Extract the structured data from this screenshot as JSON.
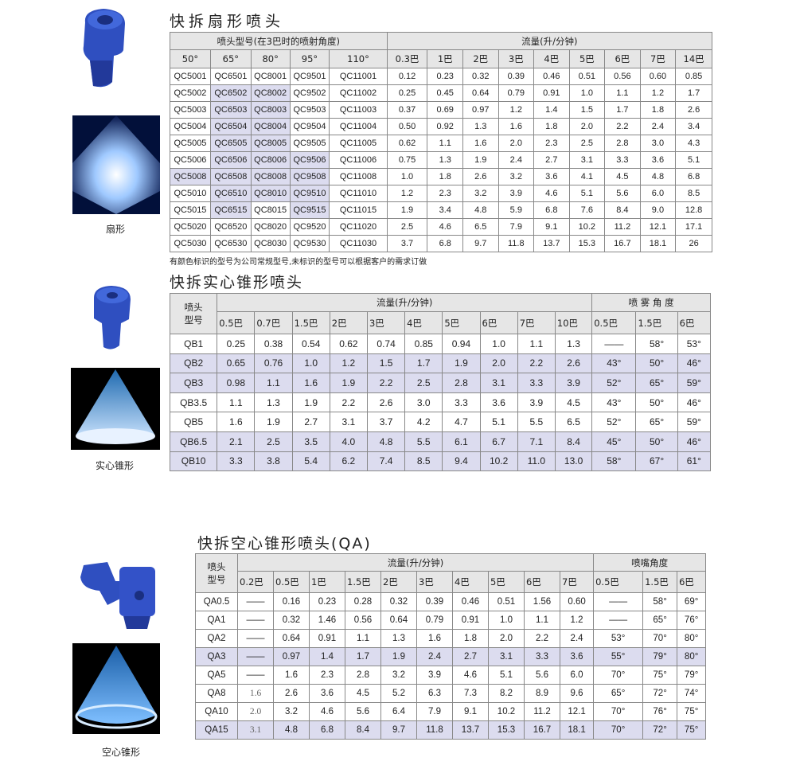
{
  "fan": {
    "title": "快拆扇形喷头",
    "caption": "扇形",
    "group_model": "喷头型号(在3巴时的喷射角度)",
    "group_flow": "流量(升/分钟)",
    "angles": [
      "50°",
      "65°",
      "80°",
      "95°",
      "110°"
    ],
    "pressures": [
      "0.3巴",
      "1巴",
      "2巴",
      "3巴",
      "4巴",
      "5巴",
      "6巴",
      "7巴",
      "14巴"
    ],
    "highlight_color": "#dcdcef",
    "highlighted_models": [
      "QC6502",
      "QC6503",
      "QC6504",
      "QC6505",
      "QC6506",
      "QC6508",
      "QC6510",
      "QC6515",
      "QC8002",
      "QC8003",
      "QC8004",
      "QC8005",
      "QC8006",
      "QC8008",
      "QC8010",
      "QC9506",
      "QC9508",
      "QC9510",
      "QC9515",
      "QC5008"
    ],
    "rows": [
      {
        "models": [
          "QC5001",
          "QC6501",
          "QC8001",
          "QC9501",
          "QC11001"
        ],
        "flow": [
          "0.12",
          "0.23",
          "0.32",
          "0.39",
          "0.46",
          "0.51",
          "0.56",
          "0.60",
          "0.85"
        ]
      },
      {
        "models": [
          "QC5002",
          "QC6502",
          "QC8002",
          "QC9502",
          "QC11002"
        ],
        "flow": [
          "0.25",
          "0.45",
          "0.64",
          "0.79",
          "0.91",
          "1.0",
          "1.1",
          "1.2",
          "1.7"
        ]
      },
      {
        "models": [
          "QC5003",
          "QC6503",
          "QC8003",
          "QC9503",
          "QC11003"
        ],
        "flow": [
          "0.37",
          "0.69",
          "0.97",
          "1.2",
          "1.4",
          "1.5",
          "1.7",
          "1.8",
          "2.6"
        ]
      },
      {
        "models": [
          "QC5004",
          "QC6504",
          "QC8004",
          "QC9504",
          "QC11004"
        ],
        "flow": [
          "0.50",
          "0.92",
          "1.3",
          "1.6",
          "1.8",
          "2.0",
          "2.2",
          "2.4",
          "3.4"
        ]
      },
      {
        "models": [
          "QC5005",
          "QC6505",
          "QC8005",
          "QC9505",
          "QC11005"
        ],
        "flow": [
          "0.62",
          "1.1",
          "1.6",
          "2.0",
          "2.3",
          "2.5",
          "2.8",
          "3.0",
          "4.3"
        ]
      },
      {
        "models": [
          "QC5006",
          "QC6506",
          "QC8006",
          "QC9506",
          "QC11006"
        ],
        "flow": [
          "0.75",
          "1.3",
          "1.9",
          "2.4",
          "2.7",
          "3.1",
          "3.3",
          "3.6",
          "5.1"
        ]
      },
      {
        "models": [
          "QC5008",
          "QC6508",
          "QC8008",
          "QC9508",
          "QC11008"
        ],
        "flow": [
          "1.0",
          "1.8",
          "2.6",
          "3.2",
          "3.6",
          "4.1",
          "4.5",
          "4.8",
          "6.8"
        ]
      },
      {
        "models": [
          "QC5010",
          "QC6510",
          "QC8010",
          "QC9510",
          "QC11010"
        ],
        "flow": [
          "1.2",
          "2.3",
          "3.2",
          "3.9",
          "4.6",
          "5.1",
          "5.6",
          "6.0",
          "8.5"
        ]
      },
      {
        "models": [
          "QC5015",
          "QC6515",
          "QC8015",
          "QC9515",
          "QC11015"
        ],
        "flow": [
          "1.9",
          "3.4",
          "4.8",
          "5.9",
          "6.8",
          "7.6",
          "8.4",
          "9.0",
          "12.8"
        ]
      },
      {
        "models": [
          "QC5020",
          "QC6520",
          "QC8020",
          "QC9520",
          "QC11020"
        ],
        "flow": [
          "2.5",
          "4.6",
          "6.5",
          "7.9",
          "9.1",
          "10.2",
          "11.2",
          "12.1",
          "17.1"
        ]
      },
      {
        "models": [
          "QC5030",
          "QC6530",
          "QC8030",
          "QC9530",
          "QC11030"
        ],
        "flow": [
          "3.7",
          "6.8",
          "9.7",
          "11.8",
          "13.7",
          "15.3",
          "16.7",
          "18.1",
          "26"
        ]
      }
    ],
    "note": "有颜色标识的型号为公司常规型号,未标识的型号可以根据客户的需求订做"
  },
  "solid": {
    "title": "快拆实心锥形喷头",
    "caption": "实心锥形",
    "model_header": [
      "喷头",
      "型号"
    ],
    "group_flow": "流量(升/分钟)",
    "group_angle": "喷 雾 角 度",
    "pressures": [
      "0.5巴",
      "0.7巴",
      "1.5巴",
      "2巴",
      "3巴",
      "4巴",
      "5巴",
      "6巴",
      "7巴",
      "10巴"
    ],
    "angle_pressures": [
      "0.5巴",
      "1.5巴",
      "6巴"
    ],
    "rows": [
      {
        "model": "QB1",
        "hl": false,
        "flow": [
          "0.25",
          "0.38",
          "0.54",
          "0.62",
          "0.74",
          "0.85",
          "0.94",
          "1.0",
          "1.1",
          "1.3"
        ],
        "angles": [
          "——",
          "58°",
          "53°"
        ]
      },
      {
        "model": "QB2",
        "hl": true,
        "flow": [
          "0.65",
          "0.76",
          "1.0",
          "1.2",
          "1.5",
          "1.7",
          "1.9",
          "2.0",
          "2.2",
          "2.6"
        ],
        "angles": [
          "43°",
          "50°",
          "46°"
        ]
      },
      {
        "model": "QB3",
        "hl": true,
        "flow": [
          "0.98",
          "1.1",
          "1.6",
          "1.9",
          "2.2",
          "2.5",
          "2.8",
          "3.1",
          "3.3",
          "3.9"
        ],
        "angles": [
          "52°",
          "65°",
          "59°"
        ]
      },
      {
        "model": "QB3.5",
        "hl": false,
        "flow": [
          "1.1",
          "1.3",
          "1.9",
          "2.2",
          "2.6",
          "3.0",
          "3.3",
          "3.6",
          "3.9",
          "4.5"
        ],
        "angles": [
          "43°",
          "50°",
          "46°"
        ]
      },
      {
        "model": "QB5",
        "hl": false,
        "flow": [
          "1.6",
          "1.9",
          "2.7",
          "3.1",
          "3.7",
          "4.2",
          "4.7",
          "5.1",
          "5.5",
          "6.5"
        ],
        "angles": [
          "52°",
          "65°",
          "59°"
        ]
      },
      {
        "model": "QB6.5",
        "hl": true,
        "flow": [
          "2.1",
          "2.5",
          "3.5",
          "4.0",
          "4.8",
          "5.5",
          "6.1",
          "6.7",
          "7.1",
          "8.4"
        ],
        "angles": [
          "45°",
          "50°",
          "46°"
        ]
      },
      {
        "model": "QB10",
        "hl": true,
        "flow": [
          "3.3",
          "3.8",
          "5.4",
          "6.2",
          "7.4",
          "8.5",
          "9.4",
          "10.2",
          "11.0",
          "13.0"
        ],
        "angles": [
          "58°",
          "67°",
          "61°"
        ]
      }
    ]
  },
  "hollow": {
    "title": "快拆空心锥形喷头(QA)",
    "caption": "空心锥形",
    "model_header": [
      "喷头",
      "型号"
    ],
    "group_flow": "流量(升/分钟)",
    "group_angle": "喷嘴角度",
    "pressures": [
      "0.2巴",
      "0.5巴",
      "1巴",
      "1.5巴",
      "2巴",
      "3巴",
      "4巴",
      "5巴",
      "6巴",
      "7巴"
    ],
    "angle_pressures": [
      "0.5巴",
      "1.5巴",
      "6巴"
    ],
    "rows": [
      {
        "model": "QA0.5",
        "hl": false,
        "flow": [
          "——",
          "0.16",
          "0.23",
          "0.28",
          "0.32",
          "0.39",
          "0.46",
          "0.51",
          "1.56",
          "0.60"
        ],
        "angles": [
          "——",
          "58°",
          "69°"
        ]
      },
      {
        "model": "QA1",
        "hl": false,
        "flow": [
          "——",
          "0.32",
          "1.46",
          "0.56",
          "0.64",
          "0.79",
          "0.91",
          "1.0",
          "1.1",
          "1.2"
        ],
        "angles": [
          "——",
          "65°",
          "76°"
        ]
      },
      {
        "model": "QA2",
        "hl": false,
        "flow": [
          "——",
          "0.64",
          "0.91",
          "1.1",
          "1.3",
          "1.6",
          "1.8",
          "2.0",
          "2.2",
          "2.4"
        ],
        "angles": [
          "53°",
          "70°",
          "80°"
        ]
      },
      {
        "model": "QA3",
        "hl": true,
        "flow": [
          "——",
          "0.97",
          "1.4",
          "1.7",
          "1.9",
          "2.4",
          "2.7",
          "3.1",
          "3.3",
          "3.6"
        ],
        "angles": [
          "55°",
          "79°",
          "80°"
        ]
      },
      {
        "model": "QA5",
        "hl": false,
        "flow": [
          "——",
          "1.6",
          "2.3",
          "2.8",
          "3.2",
          "3.9",
          "4.6",
          "5.1",
          "5.6",
          "6.0"
        ],
        "angles": [
          "70°",
          "75°",
          "79°"
        ]
      },
      {
        "model": "QA8",
        "hl": false,
        "flow": [
          "1.6",
          "2.6",
          "3.6",
          "4.5",
          "5.2",
          "6.3",
          "7.3",
          "8.2",
          "8.9",
          "9.6"
        ],
        "angles": [
          "65°",
          "72°",
          "74°"
        ]
      },
      {
        "model": "QA10",
        "hl": false,
        "flow": [
          "2.0",
          "3.2",
          "4.6",
          "5.6",
          "6.4",
          "7.9",
          "9.1",
          "10.2",
          "11.2",
          "12.1"
        ],
        "angles": [
          "70°",
          "76°",
          "75°"
        ]
      },
      {
        "model": "QA15",
        "hl": true,
        "flow": [
          "3.1",
          "4.8",
          "6.8",
          "8.4",
          "9.7",
          "11.8",
          "13.7",
          "15.3",
          "16.7",
          "18.1"
        ],
        "angles": [
          "70°",
          "72°",
          "75°"
        ]
      }
    ]
  }
}
